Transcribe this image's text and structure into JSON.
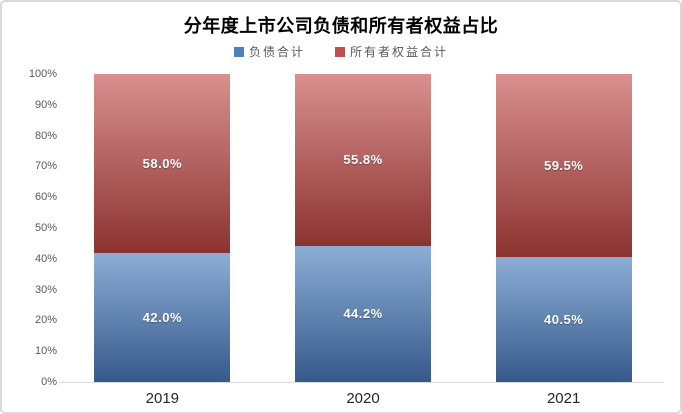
{
  "chart": {
    "background": "#ffffff",
    "border_color": "#d9d9d9",
    "axis_line_color": "#d9d9d9",
    "tick_label_color": "#595959",
    "x_label_color": "#262626",
    "data_label_color": "#ffffff"
  },
  "chart_data": {
    "type": "bar",
    "stacked": true,
    "title": "分年度上市公司负债和所有者权益占比",
    "categories": [
      "2019",
      "2020",
      "2021"
    ],
    "series": [
      {
        "id": "liabilities",
        "name": "负债合计",
        "values": [
          42.0,
          44.2,
          40.5
        ],
        "labels": [
          "42.0%",
          "44.2%",
          "40.5%"
        ],
        "legend_color": "#4f81bd",
        "color_top": "#8cadd5",
        "color_bottom": "#36598b"
      },
      {
        "id": "equity",
        "name": "所有者权益合计",
        "values": [
          58.0,
          55.8,
          59.5
        ],
        "labels": [
          "58.0%",
          "55.8%",
          "59.5%"
        ],
        "legend_color": "#c0504d",
        "color_top": "#d9908e",
        "color_bottom": "#8b3331"
      }
    ],
    "xlabel": "",
    "ylabel": "",
    "ylim": [
      0,
      100
    ],
    "yticks": [
      "0%",
      "10%",
      "20%",
      "30%",
      "40%",
      "50%",
      "60%",
      "70%",
      "80%",
      "90%",
      "100%"
    ],
    "legend_position": "top",
    "grid": false
  }
}
